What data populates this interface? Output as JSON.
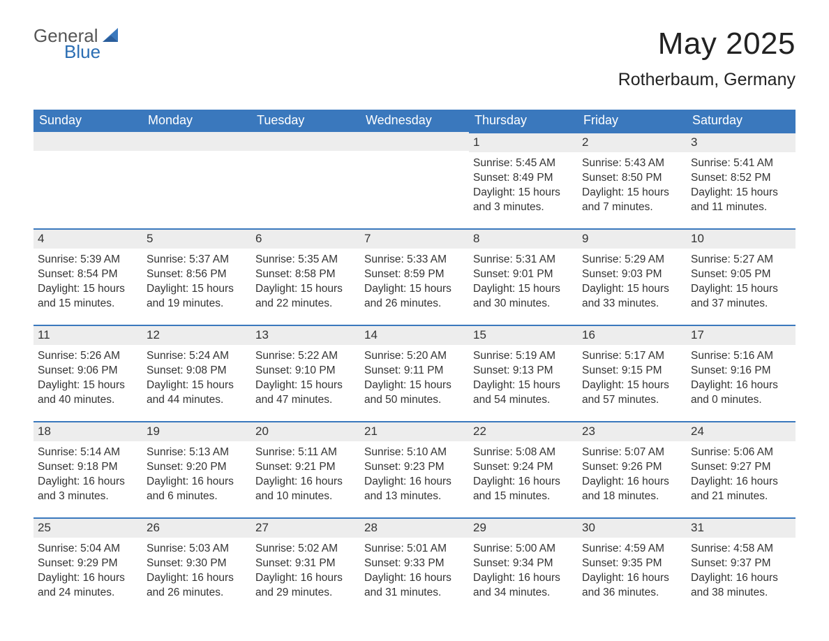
{
  "brand": {
    "general": "General",
    "blue": "Blue"
  },
  "header": {
    "title": "May 2025",
    "location": "Rotherbaum, Germany"
  },
  "colors": {
    "header_bg": "#3a78bd",
    "header_text": "#ffffff",
    "day_head_bg": "#ededed",
    "day_head_border": "#3a78bd",
    "body_text": "#333333",
    "logo_general": "#565656",
    "logo_blue": "#2a6db3",
    "page_bg": "#ffffff"
  },
  "typography": {
    "title_fontsize": 44,
    "location_fontsize": 25,
    "weekday_fontsize": 18,
    "daynum_fontsize": 17,
    "body_fontsize": 15.5,
    "font_family": "Arial"
  },
  "layout": {
    "columns": 7,
    "rows": 5,
    "leading_blanks": 4
  },
  "labels": {
    "sunrise": "Sunrise:",
    "sunset": "Sunset:",
    "daylight": "Daylight:"
  },
  "weekdays": [
    "Sunday",
    "Monday",
    "Tuesday",
    "Wednesday",
    "Thursday",
    "Friday",
    "Saturday"
  ],
  "days": [
    {
      "n": 1,
      "sunrise": "5:45 AM",
      "sunset": "8:49 PM",
      "daylight": "15 hours and 3 minutes."
    },
    {
      "n": 2,
      "sunrise": "5:43 AM",
      "sunset": "8:50 PM",
      "daylight": "15 hours and 7 minutes."
    },
    {
      "n": 3,
      "sunrise": "5:41 AM",
      "sunset": "8:52 PM",
      "daylight": "15 hours and 11 minutes."
    },
    {
      "n": 4,
      "sunrise": "5:39 AM",
      "sunset": "8:54 PM",
      "daylight": "15 hours and 15 minutes."
    },
    {
      "n": 5,
      "sunrise": "5:37 AM",
      "sunset": "8:56 PM",
      "daylight": "15 hours and 19 minutes."
    },
    {
      "n": 6,
      "sunrise": "5:35 AM",
      "sunset": "8:58 PM",
      "daylight": "15 hours and 22 minutes."
    },
    {
      "n": 7,
      "sunrise": "5:33 AM",
      "sunset": "8:59 PM",
      "daylight": "15 hours and 26 minutes."
    },
    {
      "n": 8,
      "sunrise": "5:31 AM",
      "sunset": "9:01 PM",
      "daylight": "15 hours and 30 minutes."
    },
    {
      "n": 9,
      "sunrise": "5:29 AM",
      "sunset": "9:03 PM",
      "daylight": "15 hours and 33 minutes."
    },
    {
      "n": 10,
      "sunrise": "5:27 AM",
      "sunset": "9:05 PM",
      "daylight": "15 hours and 37 minutes."
    },
    {
      "n": 11,
      "sunrise": "5:26 AM",
      "sunset": "9:06 PM",
      "daylight": "15 hours and 40 minutes."
    },
    {
      "n": 12,
      "sunrise": "5:24 AM",
      "sunset": "9:08 PM",
      "daylight": "15 hours and 44 minutes."
    },
    {
      "n": 13,
      "sunrise": "5:22 AM",
      "sunset": "9:10 PM",
      "daylight": "15 hours and 47 minutes."
    },
    {
      "n": 14,
      "sunrise": "5:20 AM",
      "sunset": "9:11 PM",
      "daylight": "15 hours and 50 minutes."
    },
    {
      "n": 15,
      "sunrise": "5:19 AM",
      "sunset": "9:13 PM",
      "daylight": "15 hours and 54 minutes."
    },
    {
      "n": 16,
      "sunrise": "5:17 AM",
      "sunset": "9:15 PM",
      "daylight": "15 hours and 57 minutes."
    },
    {
      "n": 17,
      "sunrise": "5:16 AM",
      "sunset": "9:16 PM",
      "daylight": "16 hours and 0 minutes."
    },
    {
      "n": 18,
      "sunrise": "5:14 AM",
      "sunset": "9:18 PM",
      "daylight": "16 hours and 3 minutes."
    },
    {
      "n": 19,
      "sunrise": "5:13 AM",
      "sunset": "9:20 PM",
      "daylight": "16 hours and 6 minutes."
    },
    {
      "n": 20,
      "sunrise": "5:11 AM",
      "sunset": "9:21 PM",
      "daylight": "16 hours and 10 minutes."
    },
    {
      "n": 21,
      "sunrise": "5:10 AM",
      "sunset": "9:23 PM",
      "daylight": "16 hours and 13 minutes."
    },
    {
      "n": 22,
      "sunrise": "5:08 AM",
      "sunset": "9:24 PM",
      "daylight": "16 hours and 15 minutes."
    },
    {
      "n": 23,
      "sunrise": "5:07 AM",
      "sunset": "9:26 PM",
      "daylight": "16 hours and 18 minutes."
    },
    {
      "n": 24,
      "sunrise": "5:06 AM",
      "sunset": "9:27 PM",
      "daylight": "16 hours and 21 minutes."
    },
    {
      "n": 25,
      "sunrise": "5:04 AM",
      "sunset": "9:29 PM",
      "daylight": "16 hours and 24 minutes."
    },
    {
      "n": 26,
      "sunrise": "5:03 AM",
      "sunset": "9:30 PM",
      "daylight": "16 hours and 26 minutes."
    },
    {
      "n": 27,
      "sunrise": "5:02 AM",
      "sunset": "9:31 PM",
      "daylight": "16 hours and 29 minutes."
    },
    {
      "n": 28,
      "sunrise": "5:01 AM",
      "sunset": "9:33 PM",
      "daylight": "16 hours and 31 minutes."
    },
    {
      "n": 29,
      "sunrise": "5:00 AM",
      "sunset": "9:34 PM",
      "daylight": "16 hours and 34 minutes."
    },
    {
      "n": 30,
      "sunrise": "4:59 AM",
      "sunset": "9:35 PM",
      "daylight": "16 hours and 36 minutes."
    },
    {
      "n": 31,
      "sunrise": "4:58 AM",
      "sunset": "9:37 PM",
      "daylight": "16 hours and 38 minutes."
    }
  ]
}
